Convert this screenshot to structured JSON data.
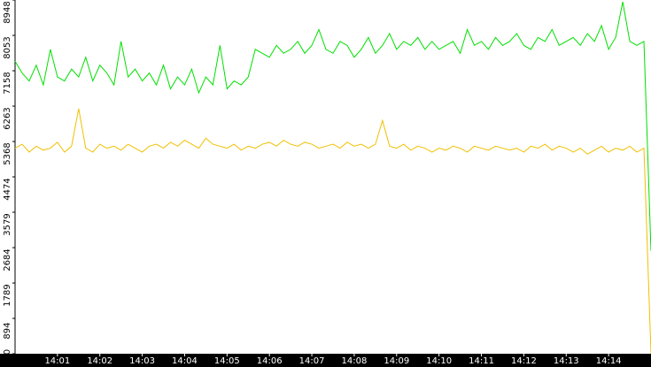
{
  "chart_data": {
    "type": "line",
    "x": [
      "14:00:00",
      "14:00:10",
      "14:00:20",
      "14:00:30",
      "14:00:40",
      "14:00:50",
      "14:01:00",
      "14:01:10",
      "14:01:20",
      "14:01:30",
      "14:01:40",
      "14:01:50",
      "14:02:00",
      "14:02:10",
      "14:02:20",
      "14:02:30",
      "14:02:40",
      "14:02:50",
      "14:03:00",
      "14:03:10",
      "14:03:20",
      "14:03:30",
      "14:03:40",
      "14:03:50",
      "14:04:00",
      "14:04:10",
      "14:04:20",
      "14:04:30",
      "14:04:40",
      "14:04:50",
      "14:05:00",
      "14:05:10",
      "14:05:20",
      "14:05:30",
      "14:05:40",
      "14:05:50",
      "14:06:00",
      "14:06:10",
      "14:06:20",
      "14:06:30",
      "14:06:40",
      "14:06:50",
      "14:07:00",
      "14:07:10",
      "14:07:20",
      "14:07:30",
      "14:07:40",
      "14:07:50",
      "14:08:00",
      "14:08:10",
      "14:08:20",
      "14:08:30",
      "14:08:40",
      "14:08:50",
      "14:09:00",
      "14:09:10",
      "14:09:20",
      "14:09:30",
      "14:09:40",
      "14:09:50",
      "14:10:00",
      "14:10:10",
      "14:10:20",
      "14:10:30",
      "14:10:40",
      "14:10:50",
      "14:11:00",
      "14:11:10",
      "14:11:20",
      "14:11:30",
      "14:11:40",
      "14:11:50",
      "14:12:00",
      "14:12:10",
      "14:12:20",
      "14:12:30",
      "14:12:40",
      "14:12:50",
      "14:13:00",
      "14:13:10",
      "14:13:20",
      "14:13:30",
      "14:13:40",
      "14:13:50",
      "14:14:00",
      "14:14:10",
      "14:14:20",
      "14:14:30",
      "14:14:40",
      "14:14:50",
      "14:15:00"
    ],
    "series": [
      {
        "color": "#00e000",
        "values": [
          7400,
          7100,
          6900,
          7300,
          6800,
          7700,
          7000,
          6900,
          7200,
          7000,
          7500,
          6900,
          7300,
          7100,
          6800,
          7900,
          7000,
          7200,
          6900,
          7100,
          6800,
          7300,
          6700,
          7000,
          6800,
          7200,
          6600,
          7000,
          6800,
          7800,
          6700,
          6900,
          6800,
          7000,
          7700,
          7600,
          7500,
          7800,
          7600,
          7700,
          7900,
          7600,
          7800,
          8200,
          7700,
          7600,
          7900,
          7800,
          7500,
          7700,
          8000,
          7600,
          7800,
          8100,
          7700,
          7900,
          7800,
          8000,
          7700,
          7900,
          7700,
          7800,
          7900,
          7600,
          8200,
          7800,
          7900,
          7700,
          8000,
          7800,
          7900,
          8100,
          7800,
          7700,
          8000,
          7900,
          8200,
          7800,
          7900,
          8000,
          7800,
          8100,
          7900,
          8300,
          7700,
          8000,
          8900,
          7900,
          7800,
          7900,
          2600
        ]
      },
      {
        "color": "#f0c000",
        "values": [
          5200,
          5300,
          5100,
          5250,
          5150,
          5200,
          5350,
          5100,
          5250,
          6200,
          5200,
          5100,
          5300,
          5200,
          5250,
          5150,
          5300,
          5200,
          5100,
          5250,
          5300,
          5200,
          5350,
          5250,
          5400,
          5300,
          5200,
          5450,
          5300,
          5250,
          5200,
          5300,
          5150,
          5250,
          5200,
          5300,
          5350,
          5250,
          5400,
          5300,
          5250,
          5350,
          5300,
          5200,
          5250,
          5300,
          5200,
          5350,
          5250,
          5300,
          5200,
          5300,
          5900,
          5250,
          5200,
          5300,
          5150,
          5250,
          5200,
          5100,
          5200,
          5150,
          5250,
          5200,
          5100,
          5250,
          5200,
          5150,
          5250,
          5200,
          5150,
          5200,
          5100,
          5250,
          5200,
          5300,
          5150,
          5250,
          5200,
          5100,
          5200,
          5050,
          5150,
          5250,
          5100,
          5200,
          5150,
          5250,
          5100,
          5200,
          0
        ]
      }
    ],
    "xlim": [
      "14:00:00",
      "14:15:00"
    ],
    "xticks": [
      "14:01",
      "14:02",
      "14:03",
      "14:04",
      "14:05",
      "14:06",
      "14:07",
      "14:08",
      "14:09",
      "14:10",
      "14:11",
      "14:12",
      "14:13",
      "14:14"
    ],
    "ylim": [
      0,
      8948
    ],
    "yticks": [
      0,
      894,
      1789,
      2684,
      3579,
      4474,
      5368,
      6263,
      7158,
      8053,
      8948
    ]
  }
}
